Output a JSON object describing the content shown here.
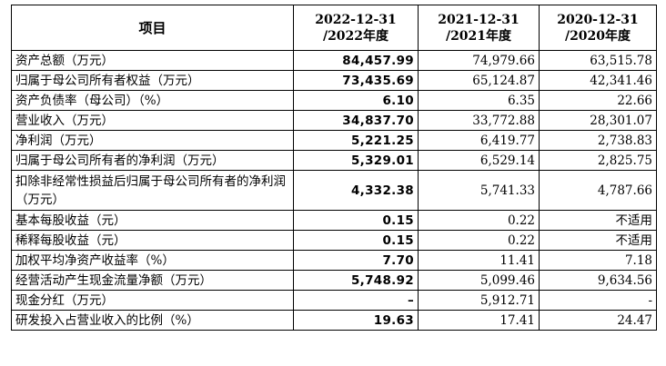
{
  "table": {
    "headers": {
      "item": "项目",
      "y2022_line1": "2022-12-31",
      "y2022_line2": "/2022年度",
      "y2021_line1": "2021-12-31",
      "y2021_line2": "/2021年度",
      "y2020_line1": "2020-12-31",
      "y2020_line2": "/2020年度"
    },
    "rows": [
      {
        "label": "资产总额（万元）",
        "v2022": "84,457.99",
        "v2021": "74,979.66",
        "v2020": "63,515.78"
      },
      {
        "label": "归属于母公司所有者权益（万元）",
        "v2022": "73,435.69",
        "v2021": "65,124.87",
        "v2020": "42,341.46"
      },
      {
        "label": "资产负债率（母公司）（%）",
        "v2022": "6.10",
        "v2021": "6.35",
        "v2020": "22.66"
      },
      {
        "label": "营业收入（万元）",
        "v2022": "34,837.70",
        "v2021": "33,772.88",
        "v2020": "28,301.07"
      },
      {
        "label": "净利润（万元）",
        "v2022": "5,221.25",
        "v2021": "6,419.77",
        "v2020": "2,738.83"
      },
      {
        "label": "归属于母公司所有者的净利润（万元）",
        "v2022": "5,329.01",
        "v2021": "6,529.14",
        "v2020": "2,825.75"
      },
      {
        "label": "扣除非经常性损益后归属于母公司所有者的净利润（万元）",
        "v2022": "4,332.38",
        "v2021": "5,741.33",
        "v2020": "4,787.66"
      },
      {
        "label": "基本每股收益（元）",
        "v2022": "0.15",
        "v2021": "0.22",
        "v2020": "不适用"
      },
      {
        "label": "稀释每股收益（元）",
        "v2022": "0.15",
        "v2021": "0.22",
        "v2020": "不适用"
      },
      {
        "label": "加权平均净资产收益率（%）",
        "v2022": "7.70",
        "v2021": "11.41",
        "v2020": "7.18"
      },
      {
        "label": "经营活动产生现金流量净额（万元）",
        "v2022": "5,748.92",
        "v2021": "5,099.46",
        "v2020": "9,634.56"
      },
      {
        "label": "现金分红（万元）",
        "v2022": "–",
        "v2021": "5,912.71",
        "v2020": "-"
      },
      {
        "label": "研发投入占营业收入的比例（%）",
        "v2022": "19.63",
        "v2021": "17.41",
        "v2020": "24.47"
      }
    ]
  }
}
